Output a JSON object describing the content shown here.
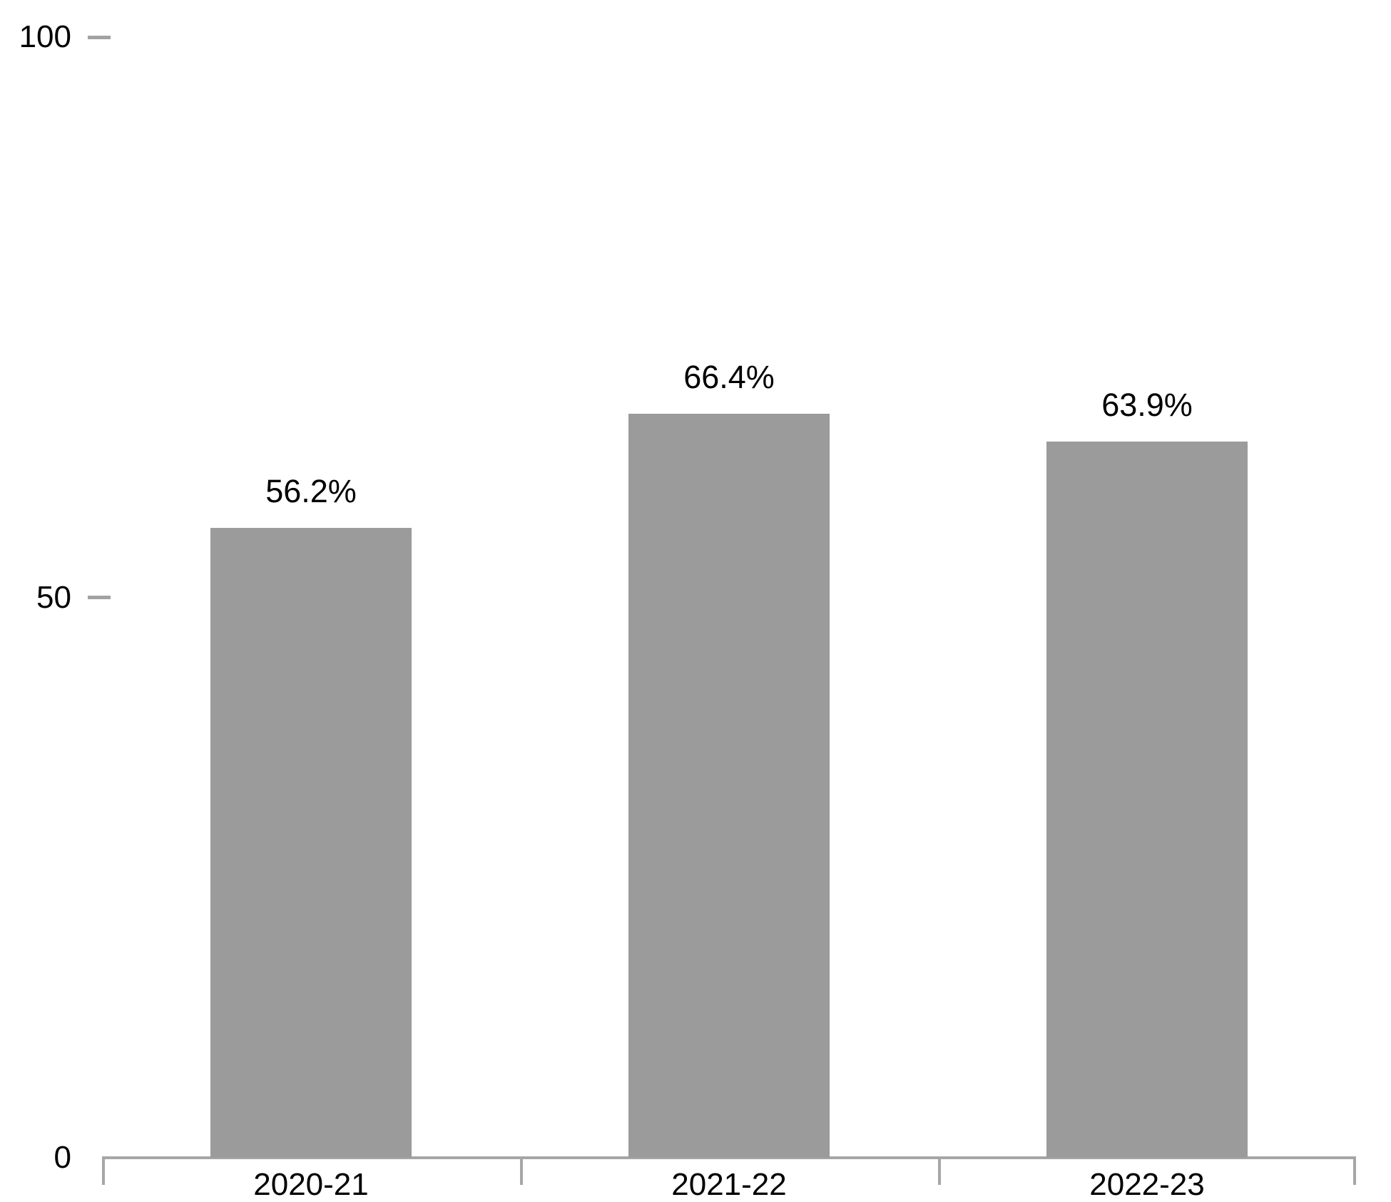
{
  "chart_data": {
    "type": "bar",
    "categories": [
      "2020-21",
      "2021-22",
      "2022-23"
    ],
    "values": [
      56.2,
      66.4,
      63.9
    ],
    "value_labels": [
      "56.2%",
      "66.4%",
      "63.9%"
    ],
    "series_count": 1,
    "ylim": [
      0,
      100
    ],
    "y_ticks": [
      {
        "value": 100,
        "label": "100",
        "dash": true
      },
      {
        "value": 50,
        "label": "50",
        "dash": true
      },
      {
        "value": 0,
        "label": "0",
        "dash": false
      }
    ],
    "grid": false,
    "legend": false,
    "layout_hints": {
      "bar_orientation": "vertical",
      "value_labels_position": "above-bars",
      "y_axis_line": false,
      "x_axis_line": true
    },
    "colors": {
      "bar": "#9b9b9b",
      "axis": "#a6a6a6",
      "tick_dash": "#a2a2a2",
      "text": "#000000",
      "background": "#ffffff"
    }
  }
}
